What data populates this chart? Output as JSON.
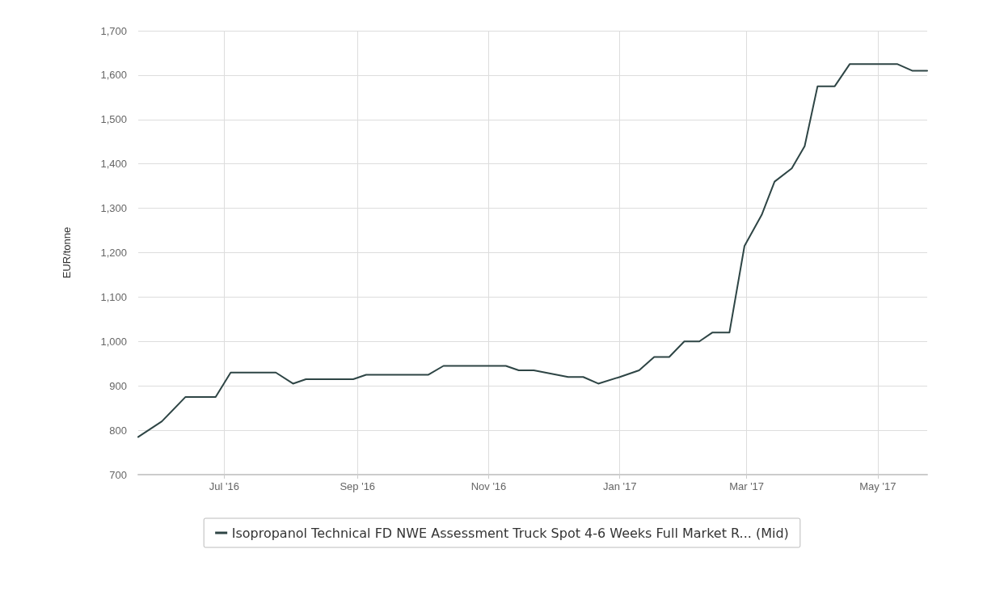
{
  "chart_data": {
    "type": "line",
    "ylabel": "EUR/tonne",
    "x": [
      "2016-05-22",
      "2016-06-02",
      "2016-06-13",
      "2016-06-27",
      "2016-07-04",
      "2016-07-25",
      "2016-08-02",
      "2016-08-08",
      "2016-08-30",
      "2016-09-05",
      "2016-10-04",
      "2016-10-11",
      "2016-11-09",
      "2016-11-15",
      "2016-11-22",
      "2016-12-08",
      "2016-12-15",
      "2016-12-22",
      "2017-01-01",
      "2017-01-10",
      "2017-01-17",
      "2017-01-24",
      "2017-01-31",
      "2017-02-07",
      "2017-02-13",
      "2017-02-21",
      "2017-02-28",
      "2017-03-08",
      "2017-03-14",
      "2017-03-22",
      "2017-03-28",
      "2017-04-03",
      "2017-04-11",
      "2017-04-18",
      "2017-05-10",
      "2017-05-17",
      "2017-05-24"
    ],
    "series": [
      {
        "name": "Isopropanol Technical FD NWE Assessment Truck Spot 4-6 Weeks Full Market R... (Mid)",
        "color": "#2e4545",
        "values": [
          785,
          820,
          875,
          875,
          930,
          930,
          905,
          915,
          915,
          925,
          925,
          945,
          945,
          935,
          935,
          920,
          920,
          905,
          920,
          935,
          965,
          965,
          1000,
          1000,
          1020,
          1020,
          1215,
          1285,
          1360,
          1390,
          1440,
          1575,
          1575,
          1625,
          1625,
          1610,
          1610
        ]
      }
    ],
    "xlim": [
      "2016-05-22",
      "2017-05-24"
    ],
    "xticks": [
      {
        "value": "2016-07-01",
        "label": "Jul '16"
      },
      {
        "value": "2016-09-01",
        "label": "Sep '16"
      },
      {
        "value": "2016-11-01",
        "label": "Nov '16"
      },
      {
        "value": "2017-01-01",
        "label": "Jan '17"
      },
      {
        "value": "2017-03-01",
        "label": "Mar '17"
      },
      {
        "value": "2017-05-01",
        "label": "May '17"
      }
    ],
    "ylim": [
      700,
      1700
    ],
    "yticks": [
      {
        "value": 700,
        "label": "700"
      },
      {
        "value": 800,
        "label": "800"
      },
      {
        "value": 900,
        "label": "900"
      },
      {
        "value": 1000,
        "label": "1,000"
      },
      {
        "value": 1100,
        "label": "1,100"
      },
      {
        "value": 1200,
        "label": "1,200"
      },
      {
        "value": 1300,
        "label": "1,300"
      },
      {
        "value": 1400,
        "label": "1,400"
      },
      {
        "value": 1500,
        "label": "1,500"
      },
      {
        "value": 1600,
        "label": "1,600"
      },
      {
        "value": 1700,
        "label": "1,700"
      }
    ],
    "grid": true,
    "legend": "bottom",
    "marker": "none",
    "line_style": "solid"
  }
}
